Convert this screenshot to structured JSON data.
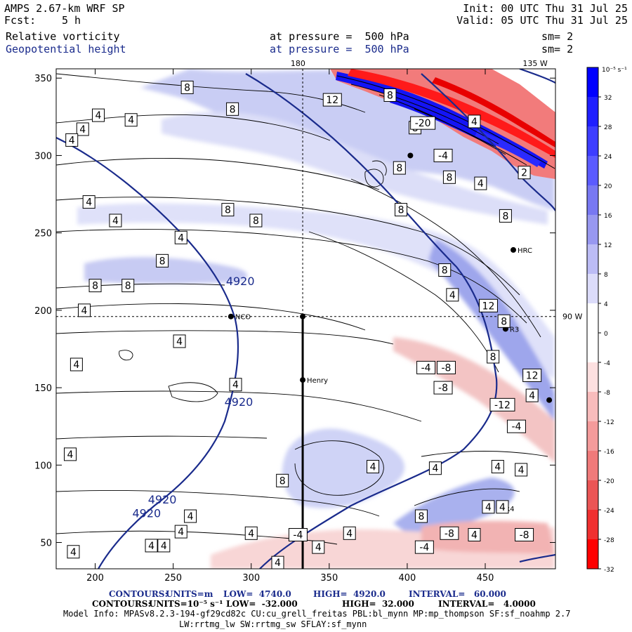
{
  "header": {
    "model_line": "AMPS 2.67-km WRF SP",
    "forecast_label": "Fcst:",
    "forecast_value": "5 h",
    "init": "Init: 00 UTC Thu 31 Jul 25",
    "valid": "Valid: 05 UTC Thu 31 Jul 25",
    "field1_name": "Relative vorticity",
    "field1_level": "at pressure =  500 hPa",
    "field1_smooth": "sm= 2",
    "field2_name": "Geopotential height",
    "field2_level": "at pressure =  500 hPa",
    "field2_smooth": "sm= 2"
  },
  "chart_data": {
    "type": "heatmap",
    "title": "",
    "xlabel": "",
    "ylabel": "",
    "xlim": [
      175,
      495
    ],
    "ylim": [
      33,
      356
    ],
    "x_ticks": [
      200,
      250,
      300,
      350,
      400,
      450
    ],
    "y_ticks": [
      50,
      100,
      150,
      200,
      250,
      300,
      350
    ],
    "top_labels": [
      {
        "x": 330,
        "text": "180"
      },
      {
        "x": 482,
        "text": "135 W"
      }
    ],
    "right_labels": [
      {
        "y": 196,
        "text": "90 W"
      }
    ],
    "crosshair": {
      "x": 333,
      "y": 196
    },
    "section_line": {
      "x": 333,
      "y0": 33,
      "y1": 196
    },
    "stations": [
      {
        "name": "NCO",
        "x": 287,
        "y": 196
      },
      {
        "name": "",
        "x": 333,
        "y": 196
      },
      {
        "name": "Henry",
        "x": 333,
        "y": 155
      },
      {
        "name": "HRC",
        "x": 468,
        "y": 239
      },
      {
        "name": "R3",
        "x": 463,
        "y": 188
      },
      {
        "name": "R4",
        "x": 460,
        "y": 72
      },
      {
        "name": "",
        "x": 402,
        "y": 300
      },
      {
        "name": "",
        "x": 491,
        "y": 142
      }
    ],
    "height_contour_labels": [
      {
        "x": 293,
        "y": 219,
        "text": "4920"
      },
      {
        "x": 292,
        "y": 141,
        "text": "4920"
      },
      {
        "x": 243,
        "y": 78,
        "text": "4920"
      },
      {
        "x": 233,
        "y": 69,
        "text": "4920"
      }
    ],
    "vorticity_labels": [
      {
        "x": 259,
        "y": 344,
        "v": "8"
      },
      {
        "x": 288,
        "y": 330,
        "v": "8"
      },
      {
        "x": 352,
        "y": 336,
        "v": "12"
      },
      {
        "x": 389,
        "y": 339,
        "v": "8"
      },
      {
        "x": 202,
        "y": 326,
        "v": "4"
      },
      {
        "x": 223,
        "y": 323,
        "v": "4"
      },
      {
        "x": 192,
        "y": 317,
        "v": "4"
      },
      {
        "x": 185,
        "y": 310,
        "v": "4"
      },
      {
        "x": 405,
        "y": 318,
        "v": "8"
      },
      {
        "x": 410,
        "y": 321,
        "v": "-20"
      },
      {
        "x": 443,
        "y": 322,
        "v": "4"
      },
      {
        "x": 423,
        "y": 300,
        "v": "-4"
      },
      {
        "x": 395,
        "y": 292,
        "v": "8"
      },
      {
        "x": 427,
        "y": 286,
        "v": "8"
      },
      {
        "x": 447,
        "y": 282,
        "v": "4"
      },
      {
        "x": 475,
        "y": 289,
        "v": "2"
      },
      {
        "x": 196,
        "y": 270,
        "v": "4"
      },
      {
        "x": 213,
        "y": 258,
        "v": "4"
      },
      {
        "x": 285,
        "y": 265,
        "v": "8"
      },
      {
        "x": 303,
        "y": 258,
        "v": "8"
      },
      {
        "x": 396,
        "y": 265,
        "v": "8"
      },
      {
        "x": 463,
        "y": 261,
        "v": "8"
      },
      {
        "x": 255,
        "y": 247,
        "v": "4"
      },
      {
        "x": 243,
        "y": 232,
        "v": "8"
      },
      {
        "x": 200,
        "y": 216,
        "v": "8"
      },
      {
        "x": 221,
        "y": 216,
        "v": "8"
      },
      {
        "x": 424,
        "y": 226,
        "v": "8"
      },
      {
        "x": 429,
        "y": 210,
        "v": "4"
      },
      {
        "x": 452,
        "y": 203,
        "v": "12"
      },
      {
        "x": 462,
        "y": 193,
        "v": "8"
      },
      {
        "x": 193,
        "y": 200,
        "v": "4"
      },
      {
        "x": 254,
        "y": 180,
        "v": "4"
      },
      {
        "x": 455,
        "y": 170,
        "v": "8"
      },
      {
        "x": 188,
        "y": 165,
        "v": "4"
      },
      {
        "x": 412,
        "y": 163,
        "v": "-4"
      },
      {
        "x": 425,
        "y": 163,
        "v": "-8"
      },
      {
        "x": 480,
        "y": 158,
        "v": "12"
      },
      {
        "x": 423,
        "y": 150,
        "v": "-8"
      },
      {
        "x": 480,
        "y": 145,
        "v": "4"
      },
      {
        "x": 461,
        "y": 139,
        "v": "-12"
      },
      {
        "x": 290,
        "y": 152,
        "v": "4"
      },
      {
        "x": 470,
        "y": 125,
        "v": "-4"
      },
      {
        "x": 184,
        "y": 107,
        "v": "4"
      },
      {
        "x": 378,
        "y": 99,
        "v": "4"
      },
      {
        "x": 418,
        "y": 98,
        "v": "4"
      },
      {
        "x": 458,
        "y": 99,
        "v": "4"
      },
      {
        "x": 473,
        "y": 97,
        "v": "4"
      },
      {
        "x": 320,
        "y": 90,
        "v": "8"
      },
      {
        "x": 452,
        "y": 73,
        "v": "4"
      },
      {
        "x": 461,
        "y": 73,
        "v": "4"
      },
      {
        "x": 409,
        "y": 67,
        "v": "8"
      },
      {
        "x": 261,
        "y": 67,
        "v": "4"
      },
      {
        "x": 255,
        "y": 57,
        "v": "4"
      },
      {
        "x": 300,
        "y": 56,
        "v": "4"
      },
      {
        "x": 330,
        "y": 55,
        "v": "-4"
      },
      {
        "x": 363,
        "y": 56,
        "v": "4"
      },
      {
        "x": 427,
        "y": 56,
        "v": "-8"
      },
      {
        "x": 443,
        "y": 55,
        "v": "4"
      },
      {
        "x": 475,
        "y": 55,
        "v": "-8"
      },
      {
        "x": 236,
        "y": 48,
        "v": "4"
      },
      {
        "x": 244,
        "y": 48,
        "v": "4"
      },
      {
        "x": 186,
        "y": 44,
        "v": "4"
      },
      {
        "x": 343,
        "y": 47,
        "v": "4"
      },
      {
        "x": 411,
        "y": 47,
        "v": "-4"
      },
      {
        "x": 317,
        "y": 37,
        "v": "4"
      }
    ],
    "colorbar": {
      "unit": "10⁻⁵ s⁻¹",
      "levels": [
        32,
        28,
        24,
        20,
        16,
        12,
        8,
        4,
        0,
        -4,
        -8,
        -12,
        -16,
        -20,
        -24,
        -28,
        -32
      ],
      "colors": [
        "#0000ff",
        "#1f1fff",
        "#3d3dff",
        "#5b5bff",
        "#7878f2",
        "#9898f0",
        "#bcbcf5",
        "#dcdcfa",
        "#ffffff",
        "#ffffff",
        "#fde0e0",
        "#f8bcbc",
        "#f49b9b",
        "#f07a7a",
        "#eb5555",
        "#f03030",
        "#ff0000"
      ]
    },
    "colors": {
      "height_contour": "#1a2b8c",
      "positive": "#3030f0",
      "negative": "#f02a2a"
    }
  },
  "footer": {
    "contour1_label": "CONTOURS:",
    "contour1_units": "UNITS=m",
    "contour1_low": "LOW=  4740.0",
    "contour1_high": "HIGH=  4920.0",
    "contour1_interval": "INTERVAL=   60.000",
    "contour2_label": "CONTOURS:",
    "contour2_units": "UNITS=10⁻⁵ s⁻¹",
    "contour2_low": "LOW=  -32.000",
    "contour2_high": "HIGH=  32.000",
    "contour2_interval": "INTERVAL=   4.0000",
    "model_info": "Model Info: MPASv8.2.3-194-gf29cd82c CU:cu_grell_freitas PBL:bl_mynn MP:mp_thompson SF:sf_noahmp 2.7",
    "model_info2": "LW:rrtmg_lw SW:rrtmg_sw SFLAY:sf_mynn"
  }
}
